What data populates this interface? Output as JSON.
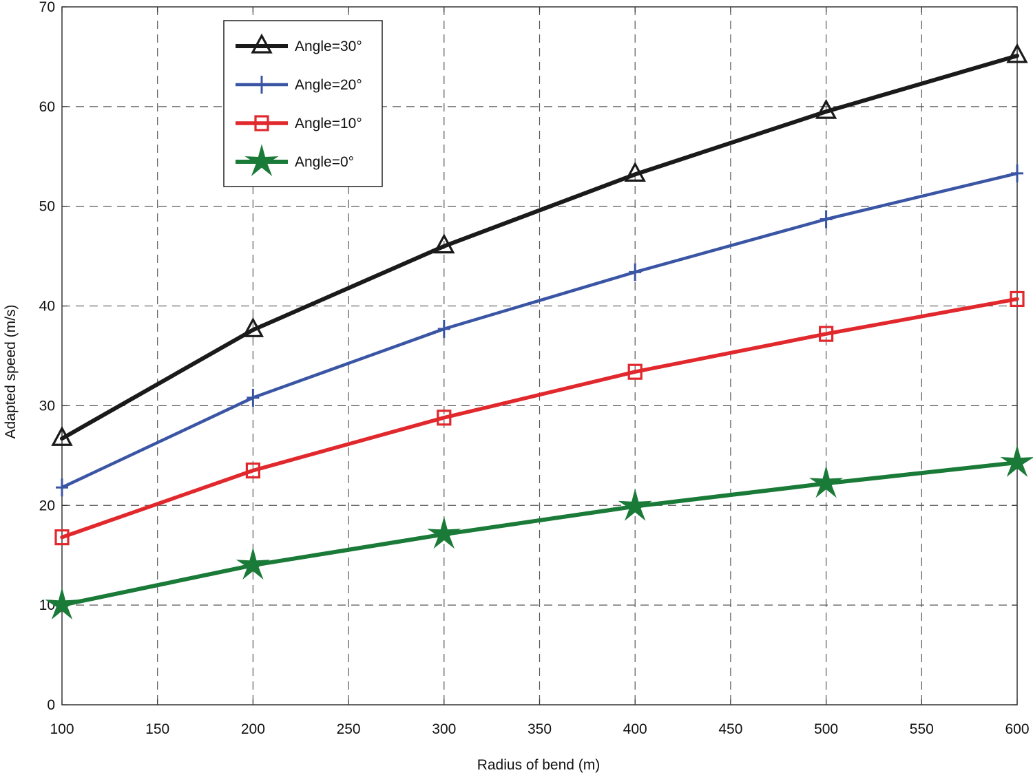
{
  "chart_data": {
    "type": "line",
    "xlabel": "Radius of bend (m)",
    "ylabel": "Adapted speed (m/s)",
    "xlim": [
      100,
      600
    ],
    "ylim": [
      0,
      70
    ],
    "xticks": [
      100,
      150,
      200,
      250,
      300,
      350,
      400,
      450,
      500,
      550,
      600
    ],
    "yticks": [
      0,
      10,
      20,
      30,
      40,
      50,
      60,
      70
    ],
    "grid": true,
    "legend_position": "top-left",
    "x": [
      100,
      200,
      300,
      400,
      500,
      600
    ],
    "series": [
      {
        "name": "Angle=30°",
        "values": [
          26.7,
          37.6,
          46.0,
          53.2,
          59.5,
          65.1
        ],
        "color": "#1a1a1a",
        "marker": "triangle"
      },
      {
        "name": "Angle=20°",
        "values": [
          21.8,
          30.8,
          37.7,
          43.4,
          48.7,
          53.3
        ],
        "color": "#3a55a4",
        "marker": "plus"
      },
      {
        "name": "Angle=10°",
        "values": [
          16.8,
          23.5,
          28.8,
          33.4,
          37.2,
          40.7
        ],
        "color": "#e0282d",
        "marker": "square"
      },
      {
        "name": "Angle=0°",
        "values": [
          10.0,
          14.0,
          17.1,
          19.9,
          22.2,
          24.3
        ],
        "color": "#1a7a38",
        "marker": "star"
      }
    ]
  }
}
